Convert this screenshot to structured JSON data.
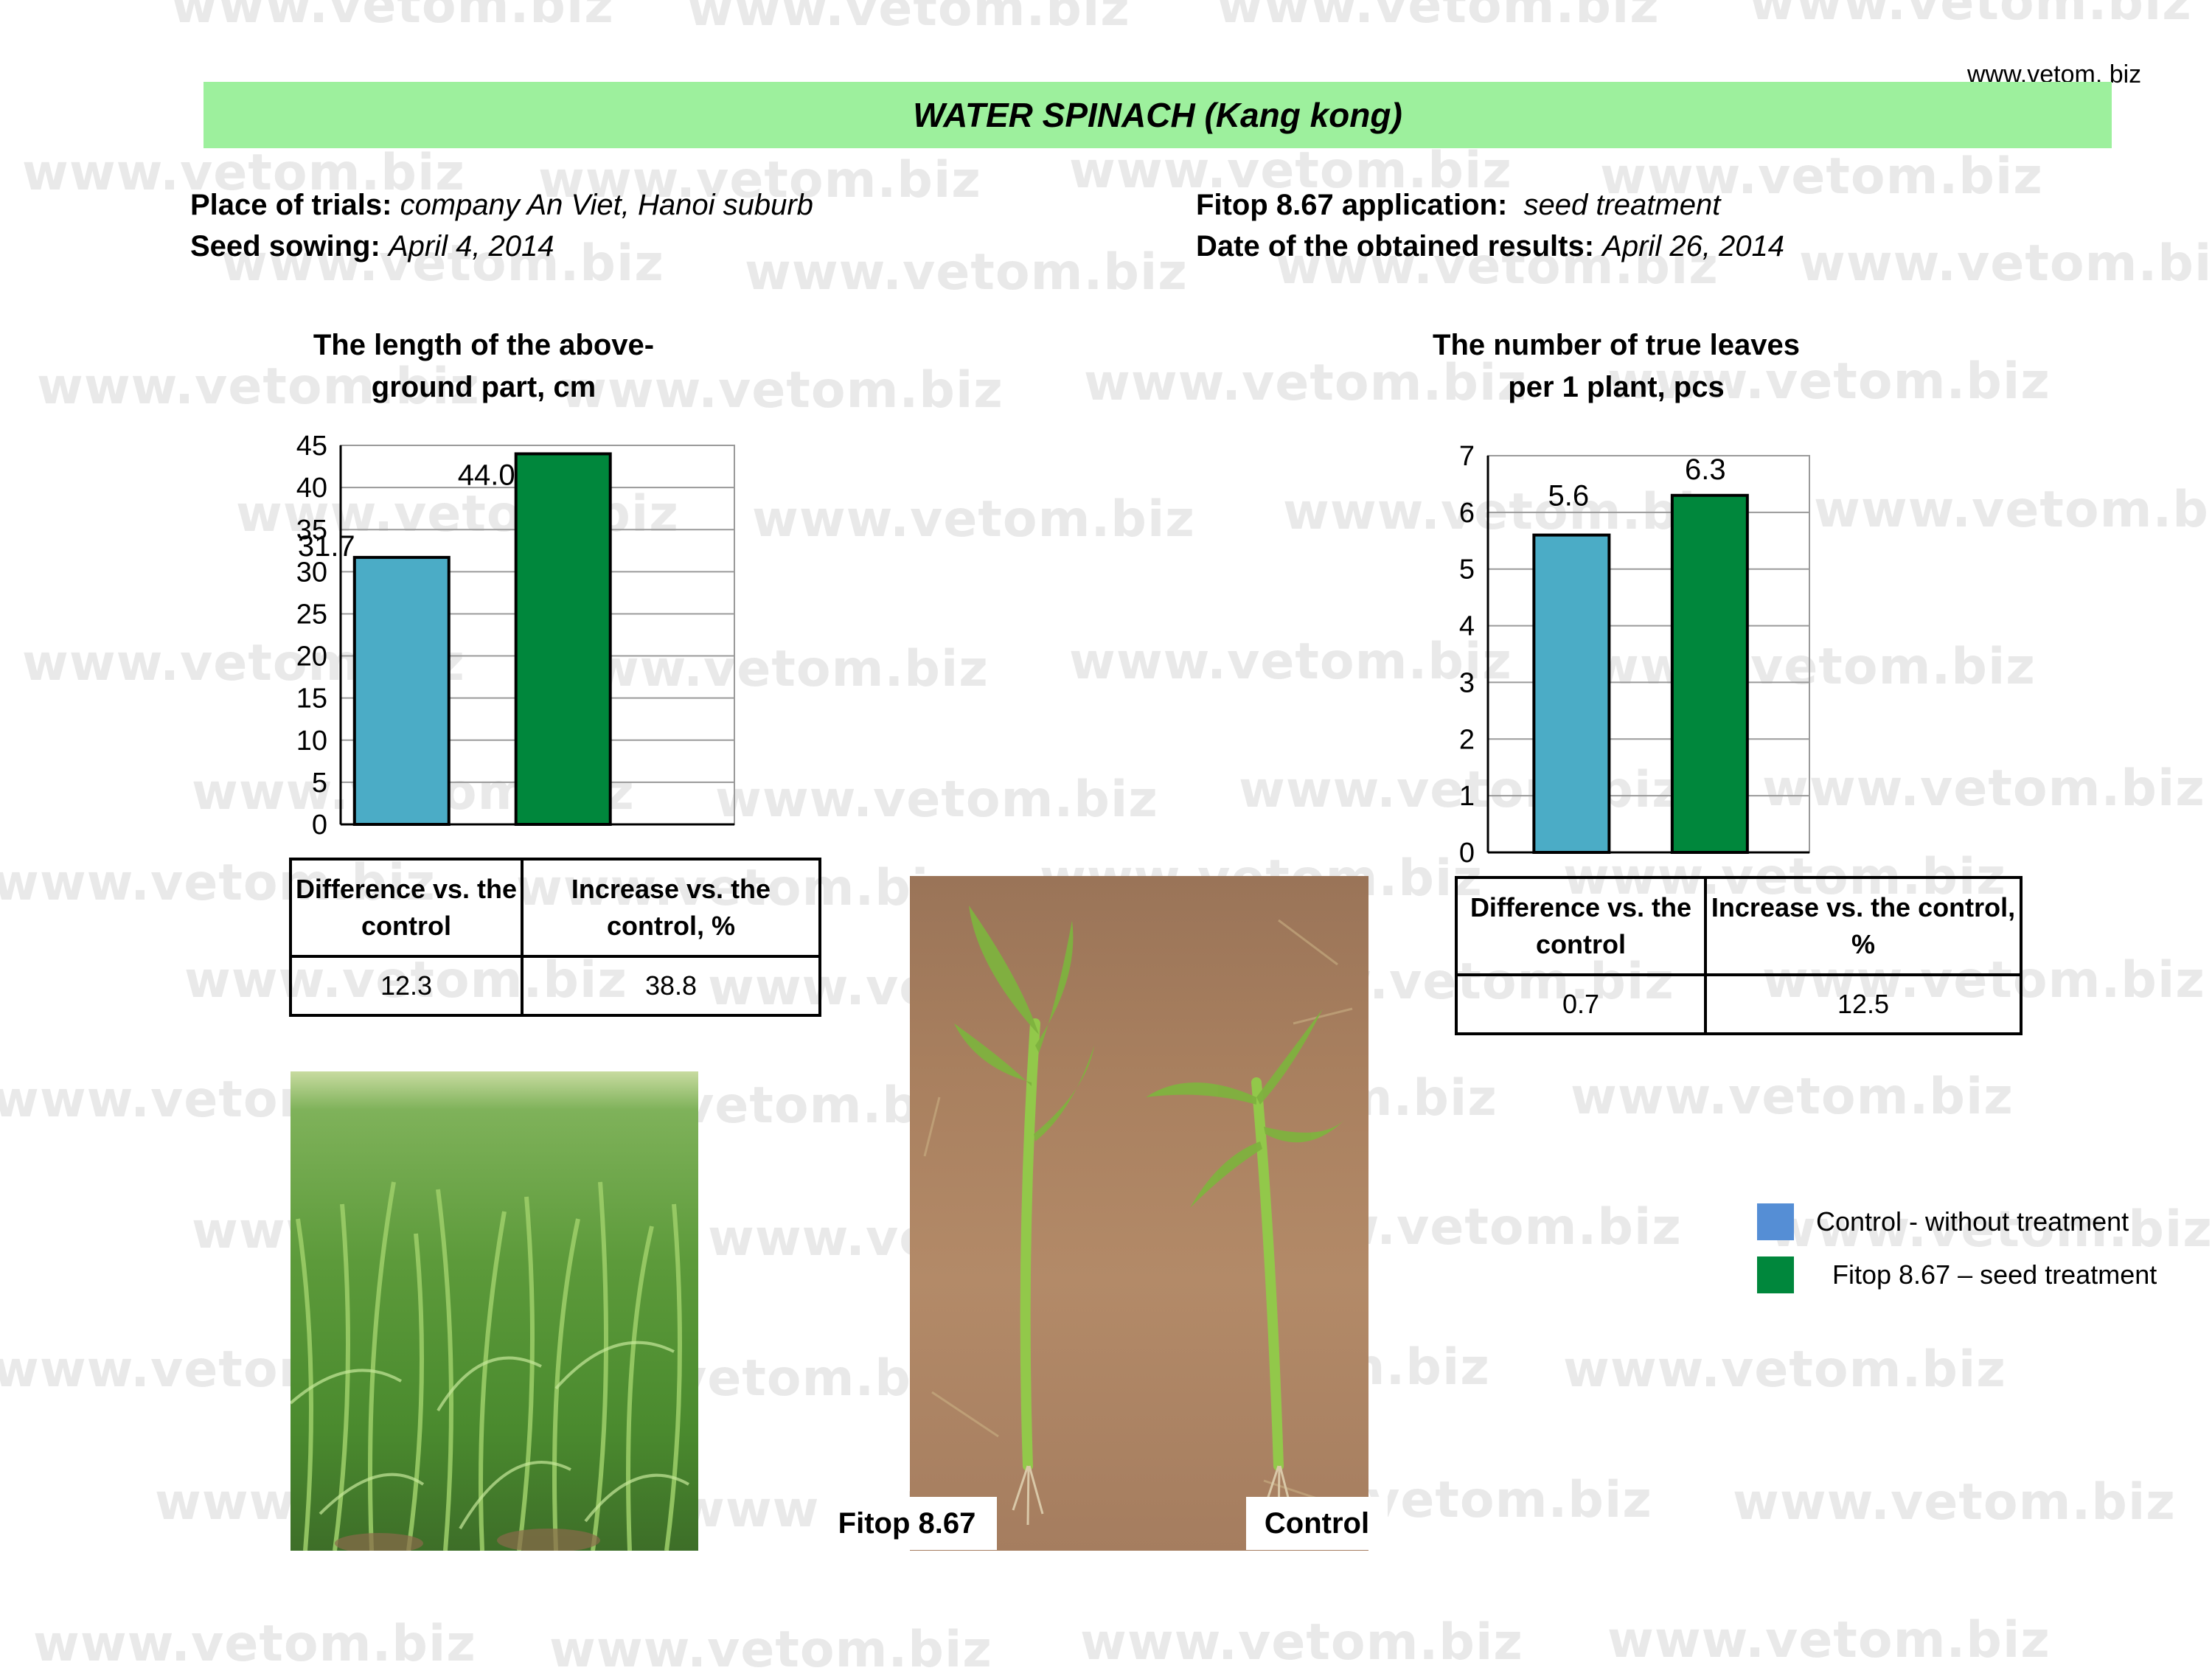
{
  "header": {
    "site_url": "www.vetom. biz",
    "title": "WATER SPINACH (Kang kong)"
  },
  "info": {
    "place_label": "Place of trials:",
    "place_value": "company An Viet, Hanoi suburb",
    "sowing_label": "Seed sowing:",
    "sowing_value": "April 4, 2014",
    "application_label": "Fitop 8.67 application:",
    "application_value": "seed treatment",
    "results_label": "Date of  the obtained results:",
    "results_value": "April 26, 2014"
  },
  "watermark_text": "www.vetom.biz",
  "chart_data": [
    {
      "type": "bar",
      "title": "The length of the above-ground part, cm",
      "title_line1": "The length of the above-",
      "title_line2": "ground part, cm",
      "categories": [
        "Control - without treatment",
        "Fitop 8.67 – seed treatment"
      ],
      "values": [
        31.7,
        44.0
      ],
      "value_labels": [
        "31.7",
        "44.0"
      ],
      "colors": [
        "#4bacc6",
        "#00873c"
      ],
      "ylim": [
        0,
        45
      ],
      "yticks": [
        "0",
        "5",
        "10",
        "15",
        "20",
        "25",
        "30",
        "35",
        "40",
        "45"
      ],
      "grid": true
    },
    {
      "type": "bar",
      "title": "The number of true leaves per 1 plant, pcs",
      "title_line1": "The number of true leaves",
      "title_line2": "per 1 plant, pcs",
      "categories": [
        "Control - without treatment",
        "Fitop 8.67 – seed treatment"
      ],
      "values": [
        5.6,
        6.3
      ],
      "value_labels": [
        "5.6",
        "6.3"
      ],
      "colors": [
        "#4bacc6",
        "#00873c"
      ],
      "ylim": [
        0,
        7
      ],
      "yticks": [
        "0",
        "1",
        "2",
        "3",
        "4",
        "5",
        "6",
        "7"
      ],
      "grid": true
    }
  ],
  "tables": {
    "left": {
      "header_diff": "Difference vs. the control",
      "header_inc": "Increase vs. the control, %",
      "diff": "12.3",
      "inc": "38.8"
    },
    "right": {
      "header_diff": "Difference vs. the control",
      "header_inc": "Increase vs. the control, %",
      "diff": "0.7",
      "inc": "12.5"
    }
  },
  "photos": {
    "caption_fitop": "Fitop 8.67",
    "caption_control": "Control"
  },
  "legend": {
    "items": [
      {
        "label": "Control - without treatment",
        "color": "#558ed5"
      },
      {
        "label": "Fitop 8.67 – seed treatment",
        "color": "#00873c"
      }
    ]
  }
}
